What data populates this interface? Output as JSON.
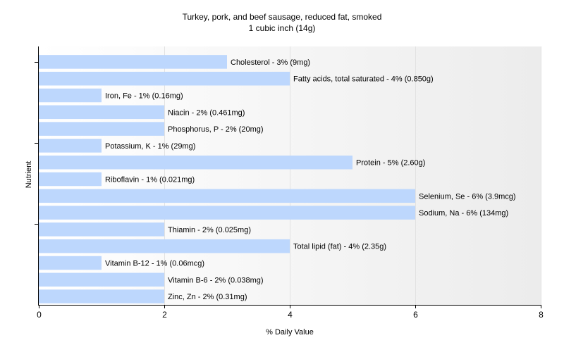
{
  "chart_data": {
    "type": "bar",
    "orientation": "horizontal",
    "title": "Turkey, pork, and beef sausage, reduced fat, smoked",
    "subtitle": "1 cubic inch (14g)",
    "xlabel": "% Daily Value",
    "ylabel": "Nutrient",
    "xlim": [
      0,
      8
    ],
    "x_ticks": [
      "0",
      "2",
      "4",
      "6",
      "8"
    ],
    "grid": "vertical gridlines",
    "bar_color": "#bdd7fd",
    "background_gradient": [
      "#ffffff",
      "#ececec"
    ],
    "categories": [
      "Cholesterol",
      "Fatty acids, total saturated",
      "Iron, Fe",
      "Niacin",
      "Phosphorus, P",
      "Potassium, K",
      "Protein",
      "Riboflavin",
      "Selenium, Se",
      "Sodium, Na",
      "Thiamin",
      "Total lipid (fat)",
      "Vitamin B-12",
      "Vitamin B-6",
      "Zinc, Zn"
    ],
    "values": [
      3,
      4,
      1,
      2,
      2,
      1,
      5,
      1,
      6,
      6,
      2,
      4,
      1,
      2,
      2
    ],
    "data_labels": [
      "Cholesterol - 3% (9mg)",
      "Fatty acids, total saturated - 4% (0.850g)",
      "Iron, Fe - 1% (0.16mg)",
      "Niacin - 2% (0.461mg)",
      "Phosphorus, P - 2% (20mg)",
      "Potassium, K - 1% (29mg)",
      "Protein - 5% (2.60g)",
      "Riboflavin - 1% (0.021mg)",
      "Selenium, Se - 6% (3.9mcg)",
      "Sodium, Na - 6% (134mg)",
      "Thiamin - 2% (0.025mg)",
      "Total lipid (fat) - 4% (2.35g)",
      "Vitamin B-12 - 1% (0.06mcg)",
      "Vitamin B-6 - 2% (0.038mg)",
      "Zinc, Zn - 2% (0.31mg)"
    ]
  }
}
